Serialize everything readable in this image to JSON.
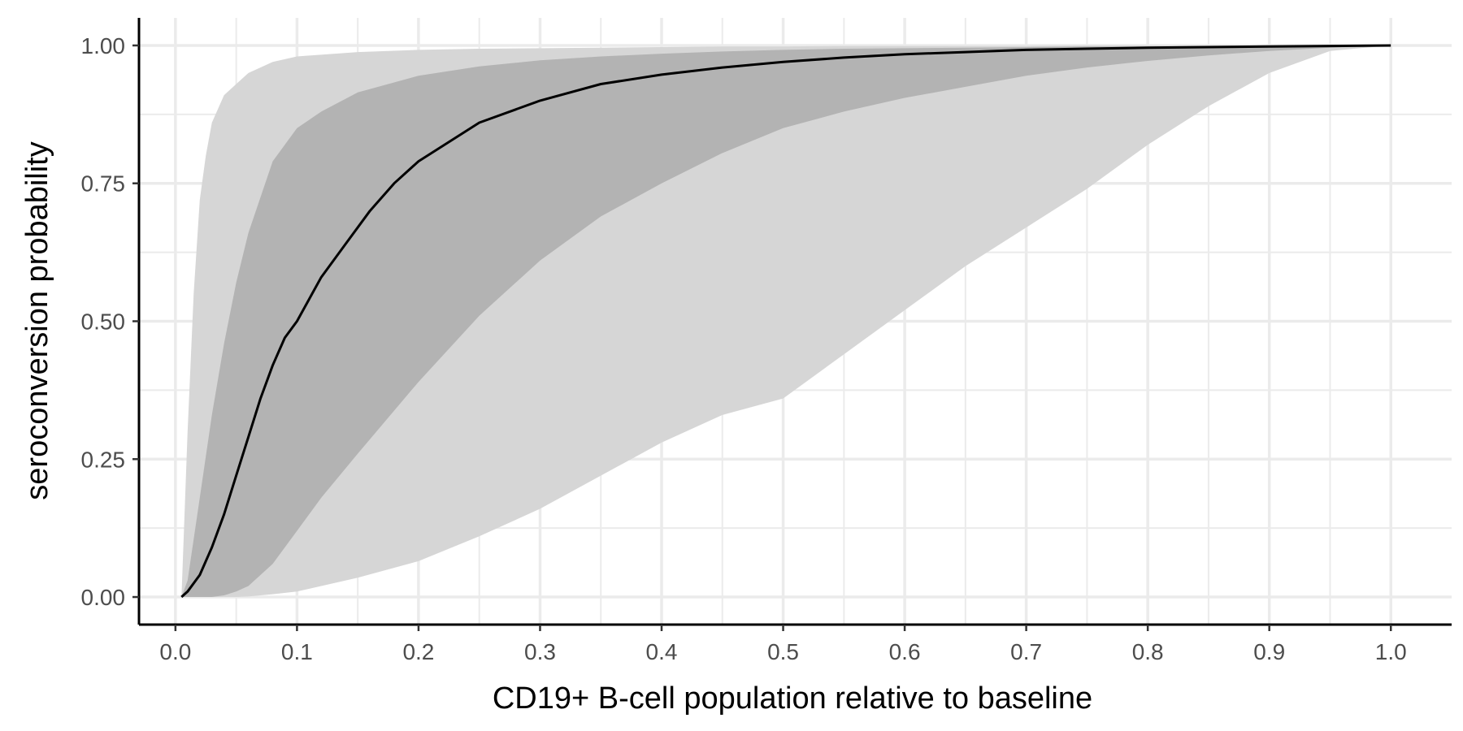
{
  "chart_data": {
    "type": "area",
    "title": "",
    "xlabel": "CD19+ B-cell population relative to baseline",
    "ylabel": "seroconversion probability",
    "xlim": [
      -0.03,
      1.05
    ],
    "ylim": [
      -0.05,
      1.05
    ],
    "x_ticks": [
      0.0,
      0.1,
      0.2,
      0.3,
      0.4,
      0.5,
      0.6,
      0.7,
      0.8,
      0.9,
      1.0
    ],
    "x_tick_labels": [
      "0.0",
      "0.1",
      "0.2",
      "0.3",
      "0.4",
      "0.5",
      "0.6",
      "0.7",
      "0.8",
      "0.9",
      "1.0"
    ],
    "y_ticks": [
      0.0,
      0.25,
      0.5,
      0.75,
      1.0
    ],
    "y_tick_labels": [
      "0.00",
      "0.25",
      "0.50",
      "0.75",
      "1.00"
    ],
    "grid": true,
    "legend": "none",
    "colors": {
      "outer_band": "#d6d6d6",
      "inner_band": "#b3b3b3",
      "line": "#000000",
      "grid": "#ebebeb",
      "axis": "#000000",
      "tick_label": "#4d4d4d"
    },
    "series": [
      {
        "role": "outer-band",
        "x": [
          0.005,
          0.01,
          0.015,
          0.02,
          0.025,
          0.03,
          0.04,
          0.05,
          0.06,
          0.08,
          0.1,
          0.15,
          0.2,
          0.25,
          0.3,
          0.35,
          0.4,
          0.45,
          0.5,
          0.55,
          0.6,
          0.65,
          0.7,
          0.75,
          0.8,
          0.85,
          0.9,
          0.95,
          1.0
        ],
        "upper": [
          0.0,
          0.3,
          0.55,
          0.72,
          0.8,
          0.86,
          0.91,
          0.93,
          0.95,
          0.97,
          0.98,
          0.988,
          0.992,
          0.994,
          0.995,
          0.996,
          0.997,
          0.998,
          0.998,
          0.999,
          0.999,
          0.999,
          0.999,
          1.0,
          1.0,
          1.0,
          1.0,
          1.0,
          1.0
        ],
        "lower": [
          0.0,
          0.0,
          0.0,
          0.0,
          0.0,
          0.0,
          0.0,
          0.0,
          0.001,
          0.005,
          0.01,
          0.035,
          0.065,
          0.11,
          0.16,
          0.22,
          0.28,
          0.33,
          0.36,
          0.44,
          0.52,
          0.6,
          0.67,
          0.74,
          0.82,
          0.89,
          0.95,
          0.99,
          1.0
        ]
      },
      {
        "role": "inner-band",
        "x": [
          0.005,
          0.01,
          0.02,
          0.03,
          0.04,
          0.05,
          0.06,
          0.08,
          0.1,
          0.12,
          0.15,
          0.2,
          0.25,
          0.3,
          0.35,
          0.4,
          0.45,
          0.5,
          0.55,
          0.6,
          0.65,
          0.7,
          0.75,
          0.8,
          0.85,
          0.9,
          0.95,
          1.0
        ],
        "upper": [
          0.0,
          0.03,
          0.18,
          0.33,
          0.46,
          0.57,
          0.66,
          0.79,
          0.85,
          0.88,
          0.915,
          0.945,
          0.962,
          0.973,
          0.98,
          0.985,
          0.989,
          0.992,
          0.994,
          0.995,
          0.996,
          0.997,
          0.998,
          0.998,
          0.999,
          0.999,
          1.0,
          1.0
        ],
        "lower": [
          0.0,
          0.0,
          0.0,
          0.0,
          0.003,
          0.01,
          0.02,
          0.06,
          0.12,
          0.18,
          0.26,
          0.39,
          0.51,
          0.61,
          0.69,
          0.75,
          0.805,
          0.85,
          0.88,
          0.905,
          0.925,
          0.945,
          0.96,
          0.972,
          0.982,
          0.99,
          0.996,
          1.0
        ]
      },
      {
        "role": "median-line",
        "x": [
          0.005,
          0.01,
          0.02,
          0.03,
          0.04,
          0.05,
          0.06,
          0.07,
          0.08,
          0.09,
          0.1,
          0.12,
          0.14,
          0.16,
          0.18,
          0.2,
          0.25,
          0.3,
          0.35,
          0.4,
          0.45,
          0.5,
          0.55,
          0.6,
          0.65,
          0.7,
          0.75,
          0.8,
          0.85,
          0.9,
          0.95,
          1.0
        ],
        "y": [
          0.0,
          0.01,
          0.04,
          0.09,
          0.15,
          0.22,
          0.29,
          0.36,
          0.42,
          0.47,
          0.5,
          0.58,
          0.64,
          0.7,
          0.75,
          0.79,
          0.86,
          0.9,
          0.93,
          0.947,
          0.96,
          0.97,
          0.978,
          0.984,
          0.988,
          0.992,
          0.994,
          0.996,
          0.997,
          0.998,
          0.999,
          1.0
        ]
      }
    ]
  }
}
